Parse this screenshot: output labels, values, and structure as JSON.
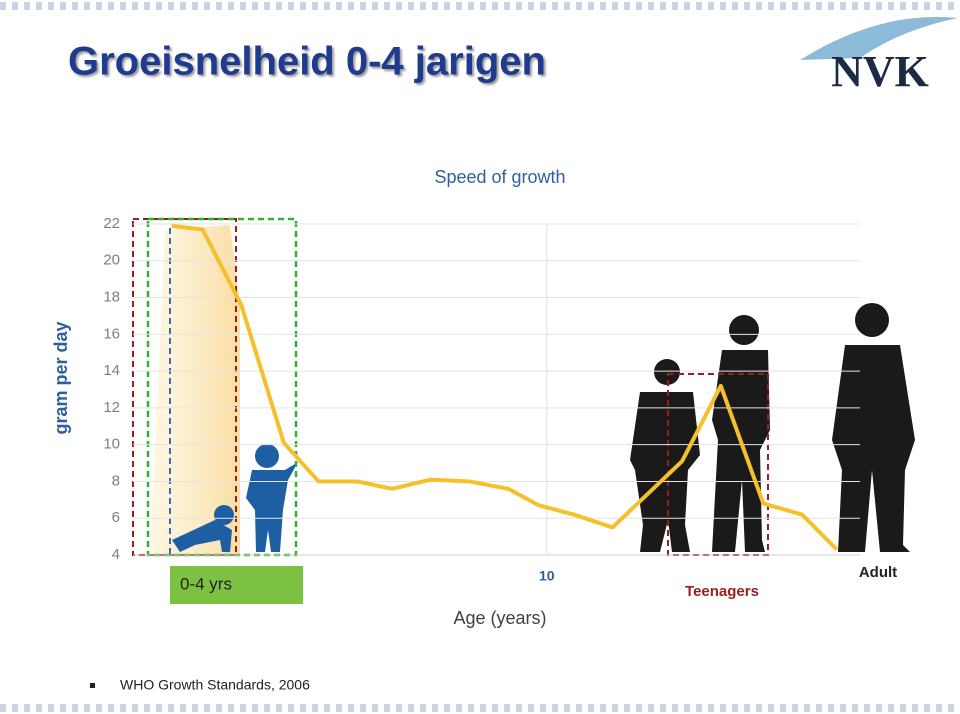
{
  "header": {
    "title": "Groeisnelheid 0-4 jarigen",
    "logo": "NVK"
  },
  "chart_data": {
    "type": "line",
    "title": "Speed  of growth",
    "y_label": "gram  per day",
    "x_label": "Age (years)",
    "x": [
      0.3,
      1.1,
      2.1,
      3.2,
      4.1,
      5.1,
      6,
      7,
      8,
      9,
      9.8,
      10.7,
      11.7,
      13.5,
      14.5,
      15.6,
      16.6,
      17.5
    ],
    "values": [
      21.9,
      21.7,
      17.6,
      10.1,
      8,
      8,
      7.6,
      8.1,
      8,
      7.6,
      6.7,
      6.2,
      5.5,
      9.1,
      13.2,
      6.8,
      6.2,
      4.3
    ],
    "color": "#f5c02a",
    "xlim": [
      -0.7,
      18.1
    ],
    "ylim": [
      4,
      22
    ],
    "xticks": [
      10
    ],
    "yticks": [
      4,
      6,
      8,
      10,
      12,
      14,
      16,
      18,
      20,
      22
    ],
    "grid": true,
    "annotations": [
      "0-4 yrs",
      "Teenagers",
      "Adult"
    ]
  },
  "footer": {
    "note": "WHO Growth Standards, 2006"
  }
}
